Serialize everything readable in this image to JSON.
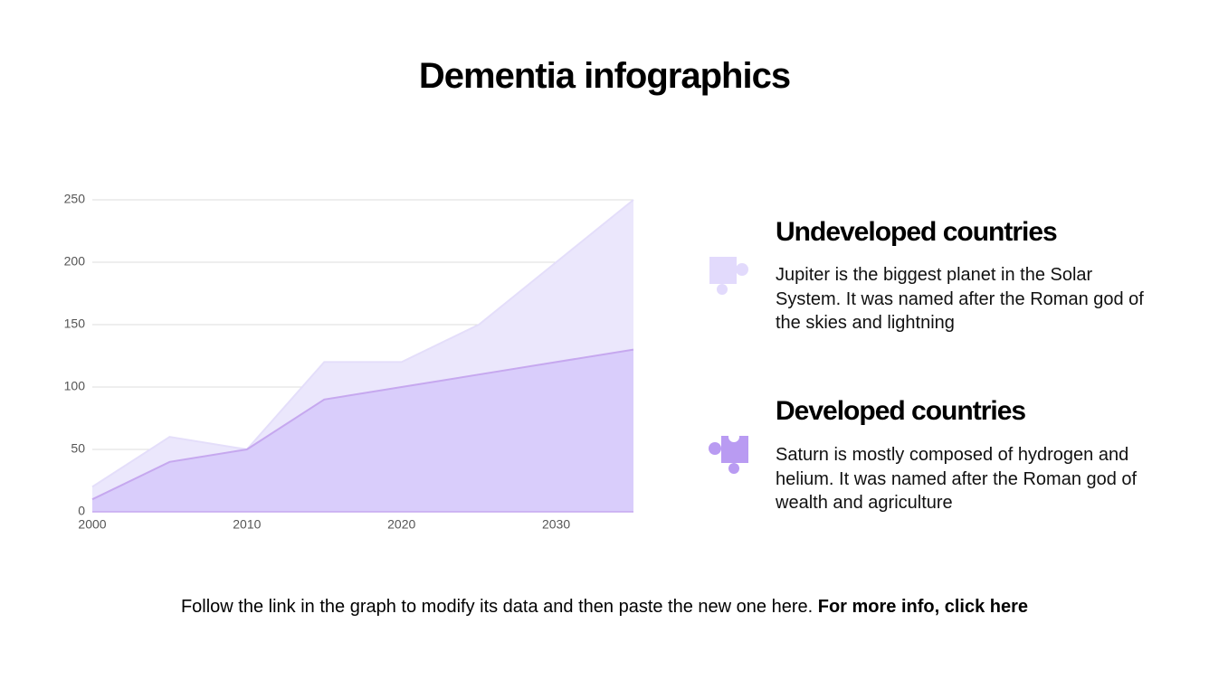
{
  "title": "Dementia infographics",
  "chart_data": {
    "type": "area",
    "x": [
      2000,
      2005,
      2010,
      2015,
      2020,
      2025,
      2030,
      2035
    ],
    "series": [
      {
        "name": "Undeveloped countries",
        "color": "#ebe7fc",
        "values": [
          20,
          60,
          50,
          120,
          120,
          150,
          200,
          250
        ]
      },
      {
        "name": "Developed countries",
        "color": "#d9cdfb",
        "values": [
          10,
          40,
          50,
          90,
          100,
          110,
          120,
          130
        ]
      }
    ],
    "xlim": [
      2000,
      2035
    ],
    "xticks": [
      2000,
      2010,
      2020,
      2030
    ],
    "ylim": [
      0,
      250
    ],
    "yticks": [
      0,
      50,
      100,
      150,
      200,
      250
    ],
    "grid": true
  },
  "descriptions": [
    "Jupiter is the biggest planet in the Solar System. It was named after the Roman god of the skies and lightning",
    "Saturn is mostly composed of hydrogen and helium. It was named after the Roman god of wealth and agriculture"
  ],
  "footer": {
    "text": "Follow the link in the graph to modify its data and then paste the new one here.",
    "link": "For more info, click here"
  }
}
